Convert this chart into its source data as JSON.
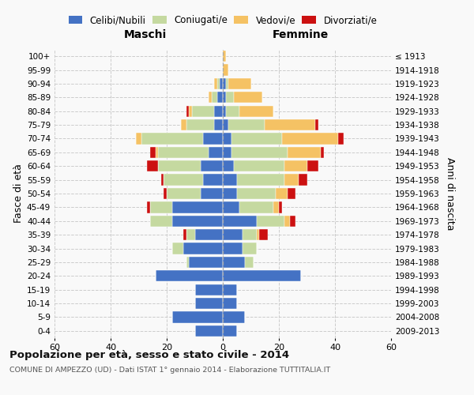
{
  "age_groups": [
    "0-4",
    "5-9",
    "10-14",
    "15-19",
    "20-24",
    "25-29",
    "30-34",
    "35-39",
    "40-44",
    "45-49",
    "50-54",
    "55-59",
    "60-64",
    "65-69",
    "70-74",
    "75-79",
    "80-84",
    "85-89",
    "90-94",
    "95-99",
    "100+"
  ],
  "birth_years": [
    "2009-2013",
    "2004-2008",
    "1999-2003",
    "1994-1998",
    "1989-1993",
    "1984-1988",
    "1979-1983",
    "1974-1978",
    "1969-1973",
    "1964-1968",
    "1959-1963",
    "1954-1958",
    "1949-1953",
    "1944-1948",
    "1939-1943",
    "1934-1938",
    "1929-1933",
    "1924-1928",
    "1919-1923",
    "1914-1918",
    "≤ 1913"
  ],
  "colors": {
    "celibe": "#4472C4",
    "coniugato": "#C5D9A0",
    "vedovo": "#F5C264",
    "divorziato": "#CC1111"
  },
  "males": {
    "celibe": [
      10,
      18,
      10,
      10,
      24,
      12,
      14,
      10,
      18,
      18,
      8,
      7,
      8,
      5,
      7,
      3,
      3,
      2,
      1,
      0,
      0
    ],
    "coniugato": [
      0,
      0,
      0,
      0,
      0,
      1,
      4,
      3,
      8,
      8,
      12,
      14,
      15,
      18,
      22,
      10,
      8,
      2,
      1,
      0,
      0
    ],
    "vedovo": [
      0,
      0,
      0,
      0,
      0,
      0,
      0,
      0,
      0,
      0,
      0,
      0,
      0,
      1,
      2,
      2,
      1,
      1,
      1,
      0,
      0
    ],
    "divorziato": [
      0,
      0,
      0,
      0,
      0,
      0,
      0,
      1,
      0,
      1,
      1,
      1,
      4,
      2,
      0,
      0,
      1,
      0,
      0,
      0,
      0
    ]
  },
  "females": {
    "nubile": [
      5,
      8,
      5,
      5,
      28,
      8,
      7,
      7,
      12,
      6,
      5,
      5,
      4,
      3,
      3,
      2,
      1,
      1,
      1,
      0,
      0
    ],
    "coniugata": [
      0,
      0,
      0,
      0,
      0,
      3,
      5,
      5,
      10,
      12,
      14,
      17,
      18,
      20,
      18,
      13,
      5,
      3,
      1,
      0,
      0
    ],
    "vedova": [
      0,
      0,
      0,
      0,
      0,
      0,
      0,
      1,
      2,
      2,
      4,
      5,
      8,
      12,
      20,
      18,
      12,
      10,
      8,
      2,
      1
    ],
    "divorziata": [
      0,
      0,
      0,
      0,
      0,
      0,
      0,
      3,
      2,
      1,
      3,
      3,
      4,
      1,
      2,
      1,
      0,
      0,
      0,
      0,
      0
    ]
  },
  "xlim": 60,
  "title": "Popolazione per età, sesso e stato civile - 2014",
  "subtitle": "COMUNE DI AMPEZZO (UD) - Dati ISTAT 1° gennaio 2014 - Elaborazione TUTTITALIA.IT",
  "ylabel_left": "Fasce di età",
  "ylabel_right": "Anni di nascita",
  "xlabel_left": "Maschi",
  "xlabel_right": "Femmine",
  "background_color": "#f9f9f9",
  "grid_color": "#cccccc"
}
